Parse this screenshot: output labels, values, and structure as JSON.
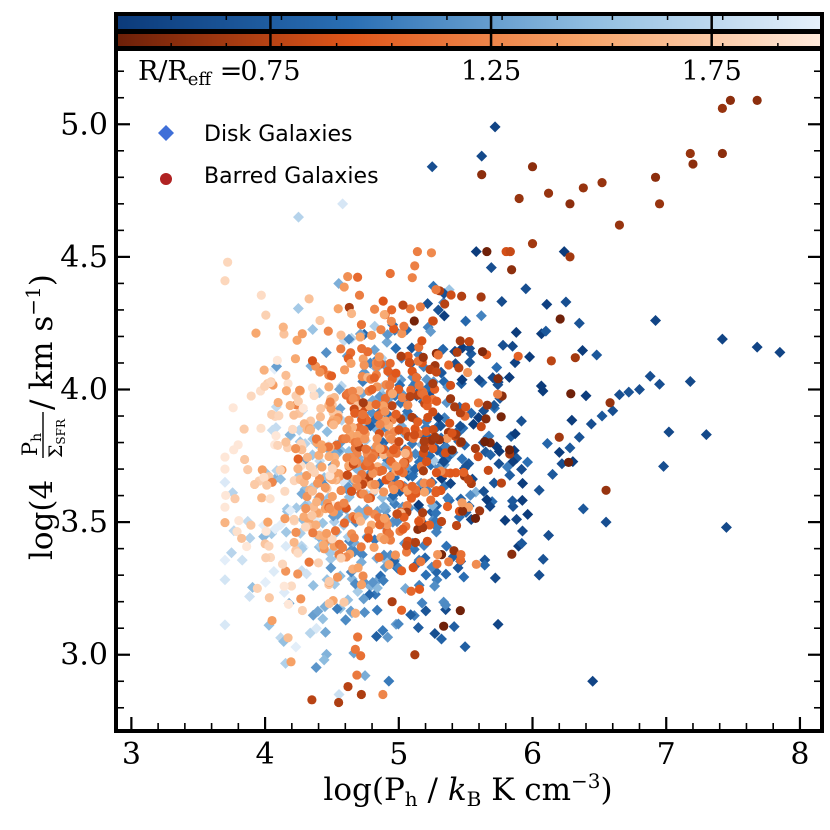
{
  "chart_data": {
    "type": "scatter",
    "xlabel": {
      "base": "log(P",
      "sub": "h",
      "mid": " / ",
      "k": "k",
      "ksub": "B",
      "tail": " K cm",
      "exp": "−3",
      "close": ")"
    },
    "ylabel": {
      "pre": "log(4 ",
      "num": "P",
      "numsub": "h",
      "den": "Σ",
      "densub": "SFR",
      "post": " / km s",
      "exp": "−1",
      "close": ")"
    },
    "xlim": [
      2.9,
      8.15
    ],
    "ylim": [
      2.72,
      5.28
    ],
    "x_ticks": [
      3,
      4,
      5,
      6,
      7,
      8
    ],
    "y_ticks": [
      3.0,
      3.5,
      4.0,
      4.5,
      5.0
    ],
    "y_tick_labels": [
      "3.0",
      "3.5",
      "4.0",
      "4.5",
      "5.0"
    ],
    "colorbar": {
      "label_main": "R/R",
      "label_sub": "eff",
      "label_eq": " =",
      "range": [
        0.4,
        2.0
      ],
      "ticks": [
        0.75,
        1.25,
        1.75
      ],
      "tick_labels": [
        "0.75",
        "1.25",
        "1.75"
      ],
      "blue_scale": [
        "#0b3a7a",
        "#2a6fb4",
        "#8fbde0",
        "#e6f0fa"
      ],
      "orange_scale": [
        "#6b1f08",
        "#e0561a",
        "#f7a56a",
        "#feeadc"
      ]
    },
    "legend": {
      "position": "upper-left",
      "entries": [
        {
          "label": "Disk Galaxies",
          "marker": "diamond",
          "color": "#3f6fd8"
        },
        {
          "label": "Barred Galaxies",
          "marker": "circle",
          "color": "#b02222"
        }
      ]
    },
    "series": [
      {
        "name": "Disk Galaxies",
        "marker": "diamond",
        "scale": "blue",
        "points": [
          [
            5.72,
            4.99,
            0.5
          ],
          [
            5.62,
            4.88,
            0.55
          ],
          [
            5.25,
            4.84,
            0.6
          ],
          [
            4.25,
            4.65,
            1.7
          ],
          [
            4.58,
            4.7,
            1.9
          ],
          [
            7.42,
            4.19,
            0.5
          ],
          [
            7.68,
            4.16,
            0.5
          ],
          [
            7.85,
            4.14,
            0.5
          ],
          [
            6.92,
            4.26,
            0.5
          ],
          [
            7.18,
            4.03,
            0.55
          ],
          [
            7.02,
            3.84,
            0.55
          ],
          [
            7.3,
            3.83,
            0.55
          ],
          [
            6.98,
            3.71,
            0.6
          ],
          [
            7.45,
            3.48,
            0.55
          ],
          [
            6.45,
            2.9,
            0.5
          ],
          [
            6.95,
            4.02,
            0.6
          ],
          [
            6.88,
            4.05,
            0.6
          ],
          [
            6.8,
            4.0,
            0.6
          ],
          [
            6.72,
            3.99,
            0.65
          ],
          [
            6.65,
            3.98,
            0.6
          ],
          [
            6.6,
            3.92,
            0.6
          ],
          [
            6.52,
            3.9,
            0.7
          ],
          [
            6.44,
            3.87,
            0.6
          ],
          [
            6.35,
            3.82,
            0.65
          ],
          [
            6.28,
            3.78,
            0.7
          ],
          [
            6.22,
            3.72,
            0.6
          ],
          [
            6.15,
            3.68,
            0.7
          ],
          [
            6.05,
            3.62,
            0.65
          ],
          [
            6.55,
            3.5,
            0.6
          ],
          [
            6.38,
            3.55,
            0.7
          ],
          [
            6.12,
            3.45,
            0.6
          ],
          [
            6.08,
            3.36,
            0.65
          ],
          [
            6.05,
            3.3,
            0.6
          ],
          [
            5.92,
            3.42,
            0.7
          ],
          [
            5.85,
            3.58,
            0.7
          ],
          [
            6.25,
            4.33,
            0.6
          ],
          [
            6.35,
            4.25,
            0.65
          ],
          [
            6.48,
            4.13,
            0.7
          ],
          [
            5.95,
            4.38,
            0.6
          ],
          [
            6.1,
            4.22,
            0.7
          ]
        ],
        "cluster": {
          "cx": 4.95,
          "cy": 3.68,
          "sx": 0.55,
          "sy": 0.3,
          "count": 560,
          "seed": 7,
          "colorTrendX": true
        }
      },
      {
        "name": "Barred Galaxies",
        "marker": "circle",
        "scale": "orange",
        "points": [
          [
            7.48,
            5.09,
            0.55
          ],
          [
            7.68,
            5.09,
            0.55
          ],
          [
            7.42,
            5.06,
            0.6
          ],
          [
            7.42,
            4.89,
            0.55
          ],
          [
            7.18,
            4.89,
            0.6
          ],
          [
            7.2,
            4.85,
            0.55
          ],
          [
            6.92,
            4.8,
            0.55
          ],
          [
            6.95,
            4.7,
            0.6
          ],
          [
            6.65,
            4.62,
            0.6
          ],
          [
            6.38,
            4.76,
            0.6
          ],
          [
            6.28,
            4.7,
            0.55
          ],
          [
            6.12,
            4.74,
            0.6
          ],
          [
            6.0,
            4.84,
            0.55
          ],
          [
            5.62,
            4.81,
            0.55
          ],
          [
            5.9,
            4.72,
            0.6
          ],
          [
            6.52,
            4.78,
            0.6
          ],
          [
            6.0,
            4.55,
            0.65
          ],
          [
            6.28,
            4.5,
            0.65
          ],
          [
            6.32,
            4.12,
            0.65
          ],
          [
            6.58,
            3.95,
            0.6
          ],
          [
            6.55,
            3.62,
            0.6
          ],
          [
            6.2,
            3.82,
            0.65
          ],
          [
            4.35,
            2.83,
            0.75
          ],
          [
            4.55,
            2.82,
            0.7
          ],
          [
            4.62,
            2.88,
            0.75
          ],
          [
            4.72,
            2.85,
            0.7
          ],
          [
            3.72,
            4.48,
            1.85
          ],
          [
            3.7,
            4.41,
            1.85
          ],
          [
            5.12,
            3.0,
            0.7
          ],
          [
            4.95,
            3.2,
            0.7
          ]
        ],
        "cluster": {
          "cx": 4.78,
          "cy": 3.78,
          "sx": 0.48,
          "sy": 0.29,
          "count": 640,
          "seed": 21,
          "colorTrendX": true
        }
      }
    ]
  }
}
